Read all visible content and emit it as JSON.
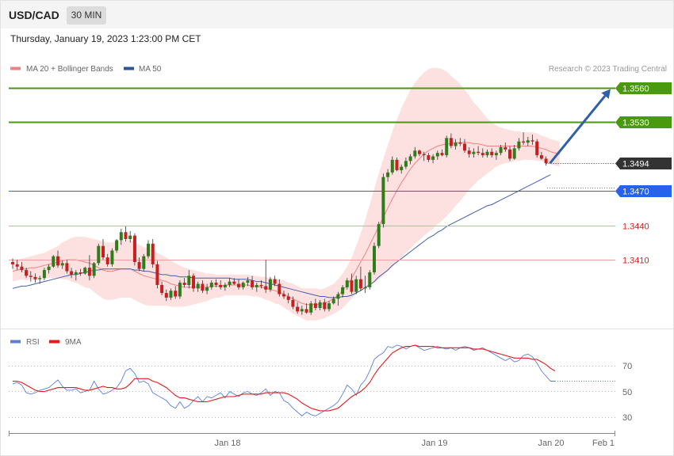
{
  "header": {
    "symbol": "USD/CAD",
    "timeframe": "30 MIN",
    "datetime": "Thursday, January 19, 2023 1:23:00 PM CET"
  },
  "legend": {
    "ma20_label": "MA 20 + Bollinger Bands",
    "ma50_label": "MA 50",
    "credit": "Research © 2023 Trading Central"
  },
  "colors": {
    "resistance": "#4a9a0e",
    "support_blue": "#2563eb",
    "current": "#333333",
    "pivot_red": "#d92020",
    "candle_up": "#2e7d1a",
    "candle_down": "#c81e1e",
    "bollinger_fill": "#fde0e0",
    "ma20": "#f08080",
    "ma50": "#4060b0",
    "arrow": "#2f5fa8",
    "rsi": "#5b7fd8",
    "rsi_ma": "#e21b1b"
  },
  "levels": [
    {
      "label": "1.3560",
      "value": 1.356,
      "kind": "resistance"
    },
    {
      "label": "1.3530",
      "value": 1.353,
      "kind": "resistance"
    },
    {
      "label": "1.3494",
      "value": 1.3494,
      "kind": "current"
    },
    {
      "label": "1.3470",
      "value": 1.347,
      "kind": "support"
    },
    {
      "label": "1.3440",
      "value": 1.344,
      "kind": "pivot"
    },
    {
      "label": "1.3410",
      "value": 1.341,
      "kind": "pivot"
    }
  ],
  "rsi_panel": {
    "rsi_label": "RSI",
    "ma_label": "9MA",
    "ticks": [
      "70",
      "50",
      "30"
    ]
  },
  "x_axis": {
    "labels": [
      "Jan 18",
      "Jan 19",
      "Jan 20",
      "Feb 1"
    ]
  },
  "chart_data": {
    "type": "candlestick",
    "ylim": [
      1.3348,
      1.357
    ],
    "forecast_target": 1.356,
    "candles": [
      [
        1.3408,
        1.3411,
        1.3402,
        1.3406
      ],
      [
        1.3406,
        1.341,
        1.3401,
        1.3404
      ],
      [
        1.3404,
        1.3408,
        1.3399,
        1.3401
      ],
      [
        1.3401,
        1.3403,
        1.3394,
        1.3396
      ],
      [
        1.3396,
        1.34,
        1.3391,
        1.3395
      ],
      [
        1.3395,
        1.3398,
        1.339,
        1.3393
      ],
      [
        1.3393,
        1.3396,
        1.3389,
        1.3394
      ],
      [
        1.3394,
        1.3403,
        1.3392,
        1.3401
      ],
      [
        1.3401,
        1.3406,
        1.3398,
        1.3404
      ],
      [
        1.3404,
        1.3414,
        1.3403,
        1.3413
      ],
      [
        1.3413,
        1.3418,
        1.3403,
        1.3405
      ],
      [
        1.3405,
        1.3409,
        1.3402,
        1.3407
      ],
      [
        1.3407,
        1.341,
        1.3398,
        1.34
      ],
      [
        1.34,
        1.3403,
        1.3394,
        1.3397
      ],
      [
        1.3397,
        1.3401,
        1.3392,
        1.3399
      ],
      [
        1.3399,
        1.3402,
        1.3396,
        1.3398
      ],
      [
        1.3398,
        1.3404,
        1.3397,
        1.3403
      ],
      [
        1.3403,
        1.3414,
        1.3392,
        1.3396
      ],
      [
        1.3396,
        1.3408,
        1.3394,
        1.3407
      ],
      [
        1.3407,
        1.3424,
        1.3405,
        1.3422
      ],
      [
        1.3422,
        1.3428,
        1.341,
        1.3412
      ],
      [
        1.3412,
        1.3415,
        1.3404,
        1.3406
      ],
      [
        1.3406,
        1.342,
        1.3404,
        1.3418
      ],
      [
        1.3418,
        1.3428,
        1.3416,
        1.3427
      ],
      [
        1.3427,
        1.3437,
        1.3423,
        1.3434
      ],
      [
        1.3434,
        1.3439,
        1.3426,
        1.3428
      ],
      [
        1.3428,
        1.3435,
        1.3425,
        1.3431
      ],
      [
        1.3431,
        1.3433,
        1.3405,
        1.3408
      ],
      [
        1.3408,
        1.3412,
        1.34,
        1.3402
      ],
      [
        1.3402,
        1.3415,
        1.34,
        1.3413
      ],
      [
        1.3413,
        1.3427,
        1.3411,
        1.3424
      ],
      [
        1.3424,
        1.3428,
        1.3403,
        1.3406
      ],
      [
        1.3406,
        1.3409,
        1.3385,
        1.3388
      ],
      [
        1.3388,
        1.3391,
        1.3379,
        1.3381
      ],
      [
        1.3381,
        1.3384,
        1.3374,
        1.3377
      ],
      [
        1.3377,
        1.3385,
        1.3375,
        1.3383
      ],
      [
        1.3383,
        1.3387,
        1.3376,
        1.3378
      ],
      [
        1.3378,
        1.3392,
        1.3376,
        1.339
      ],
      [
        1.339,
        1.3394,
        1.3386,
        1.3388
      ],
      [
        1.3388,
        1.3401,
        1.3385,
        1.3396
      ],
      [
        1.3396,
        1.3398,
        1.3382,
        1.3385
      ],
      [
        1.3385,
        1.3391,
        1.3382,
        1.3389
      ],
      [
        1.3389,
        1.3392,
        1.3381,
        1.3383
      ],
      [
        1.3383,
        1.3389,
        1.338,
        1.3386
      ],
      [
        1.3386,
        1.3392,
        1.3384,
        1.339
      ],
      [
        1.339,
        1.3393,
        1.3386,
        1.3388
      ],
      [
        1.3388,
        1.3392,
        1.3384,
        1.3386
      ],
      [
        1.3386,
        1.339,
        1.3383,
        1.3388
      ],
      [
        1.3388,
        1.3394,
        1.3386,
        1.3391
      ],
      [
        1.3391,
        1.3394,
        1.3388,
        1.3389
      ],
      [
        1.3389,
        1.3393,
        1.3384,
        1.3386
      ],
      [
        1.3386,
        1.3391,
        1.3384,
        1.339
      ],
      [
        1.339,
        1.3395,
        1.3387,
        1.3392
      ],
      [
        1.3392,
        1.3396,
        1.3384,
        1.3386
      ],
      [
        1.3386,
        1.339,
        1.3382,
        1.3388
      ],
      [
        1.3388,
        1.3392,
        1.3385,
        1.3387
      ],
      [
        1.3387,
        1.341,
        1.3381,
        1.3384
      ],
      [
        1.3384,
        1.3395,
        1.3382,
        1.3393
      ],
      [
        1.3393,
        1.3396,
        1.3387,
        1.3389
      ],
      [
        1.3389,
        1.3393,
        1.3378,
        1.338
      ],
      [
        1.338,
        1.3383,
        1.3376,
        1.3378
      ],
      [
        1.3378,
        1.3381,
        1.3372,
        1.3375
      ],
      [
        1.3375,
        1.3378,
        1.3367,
        1.3369
      ],
      [
        1.3369,
        1.3373,
        1.3363,
        1.3365
      ],
      [
        1.3365,
        1.337,
        1.3362,
        1.3367
      ],
      [
        1.3367,
        1.3372,
        1.3363,
        1.3364
      ],
      [
        1.3364,
        1.3374,
        1.3362,
        1.3372
      ],
      [
        1.3372,
        1.3376,
        1.3366,
        1.3368
      ],
      [
        1.3368,
        1.3375,
        1.3366,
        1.3373
      ],
      [
        1.3373,
        1.3376,
        1.3365,
        1.3367
      ],
      [
        1.3367,
        1.3374,
        1.3365,
        1.3372
      ],
      [
        1.3372,
        1.3378,
        1.3371,
        1.3376
      ],
      [
        1.3376,
        1.3382,
        1.337,
        1.338
      ],
      [
        1.338,
        1.3388,
        1.3377,
        1.3386
      ],
      [
        1.3386,
        1.3394,
        1.3384,
        1.3392
      ],
      [
        1.3392,
        1.3398,
        1.338,
        1.3382
      ],
      [
        1.3382,
        1.3396,
        1.338,
        1.3393
      ],
      [
        1.3393,
        1.3404,
        1.3383,
        1.3385
      ],
      [
        1.3385,
        1.3396,
        1.3381,
        1.3386
      ],
      [
        1.3386,
        1.3401,
        1.3384,
        1.3399
      ],
      [
        1.3399,
        1.3425,
        1.3397,
        1.3422
      ],
      [
        1.3422,
        1.3443,
        1.342,
        1.3441
      ],
      [
        1.3441,
        1.3485,
        1.3438,
        1.3482
      ],
      [
        1.3482,
        1.3489,
        1.3478,
        1.3486
      ],
      [
        1.3486,
        1.35,
        1.3484,
        1.3497
      ],
      [
        1.3497,
        1.3499,
        1.3487,
        1.3488
      ],
      [
        1.3488,
        1.3493,
        1.3485,
        1.3491
      ],
      [
        1.3491,
        1.3499,
        1.3489,
        1.3496
      ],
      [
        1.3496,
        1.3502,
        1.3493,
        1.35
      ],
      [
        1.35,
        1.3508,
        1.3498,
        1.3505
      ],
      [
        1.3505,
        1.3506,
        1.35,
        1.3502
      ],
      [
        1.3502,
        1.3504,
        1.3496,
        1.3501
      ],
      [
        1.3501,
        1.3503,
        1.3495,
        1.3497
      ],
      [
        1.3497,
        1.3502,
        1.3494,
        1.35
      ],
      [
        1.35,
        1.3505,
        1.3497,
        1.3503
      ],
      [
        1.3503,
        1.3506,
        1.35,
        1.3501
      ],
      [
        1.3501,
        1.3518,
        1.3499,
        1.3516
      ],
      [
        1.3516,
        1.352,
        1.3507,
        1.3509
      ],
      [
        1.3509,
        1.3515,
        1.3506,
        1.3512
      ],
      [
        1.3512,
        1.3516,
        1.3509,
        1.3511
      ],
      [
        1.3511,
        1.3515,
        1.3503,
        1.3505
      ],
      [
        1.3505,
        1.3508,
        1.3499,
        1.3502
      ],
      [
        1.3502,
        1.3507,
        1.3499,
        1.3504
      ],
      [
        1.3504,
        1.3509,
        1.3501,
        1.3503
      ],
      [
        1.3503,
        1.3507,
        1.3499,
        1.3501
      ],
      [
        1.3501,
        1.3506,
        1.3499,
        1.3504
      ],
      [
        1.3504,
        1.3507,
        1.3499,
        1.3501
      ],
      [
        1.3501,
        1.3505,
        1.3497,
        1.3503
      ],
      [
        1.3503,
        1.351,
        1.3501,
        1.3508
      ],
      [
        1.3508,
        1.3512,
        1.3504,
        1.3506
      ],
      [
        1.3506,
        1.3509,
        1.3496,
        1.3498
      ],
      [
        1.3498,
        1.351,
        1.3497,
        1.3507
      ],
      [
        1.3507,
        1.3516,
        1.3505,
        1.3513
      ],
      [
        1.3513,
        1.3521,
        1.351,
        1.3512
      ],
      [
        1.3512,
        1.3517,
        1.3509,
        1.3514
      ],
      [
        1.3514,
        1.3519,
        1.351,
        1.3513
      ],
      [
        1.3513,
        1.3515,
        1.3499,
        1.3501
      ],
      [
        1.3501,
        1.3504,
        1.3497,
        1.3498
      ],
      [
        1.3498,
        1.35,
        1.3492,
        1.3494
      ]
    ],
    "ma20": [
      1.34,
      1.3401,
      1.3402,
      1.3402,
      1.3403,
      1.3403,
      1.3404,
      1.3405,
      1.3406,
      1.3407,
      1.3408,
      1.3409,
      1.341,
      1.341,
      1.341,
      1.3409,
      1.3408,
      1.3407,
      1.3405,
      1.3403,
      1.3401,
      1.34,
      1.34,
      1.3401,
      1.3402,
      1.3402,
      1.3402,
      1.34,
      1.3398,
      1.3396,
      1.3395,
      1.3394,
      1.3393,
      1.3392,
      1.3391,
      1.3389,
      1.3388,
      1.3387,
      1.3386,
      1.3386,
      1.3386,
      1.3386,
      1.3386,
      1.3386,
      1.3387,
      1.3387,
      1.3387,
      1.3388,
      1.3388,
      1.3388,
      1.3388,
      1.3388,
      1.3388,
      1.3387,
      1.3387,
      1.3386,
      1.3385,
      1.3384,
      1.3383,
      1.3382,
      1.338,
      1.3378,
      1.3376,
      1.3374,
      1.3372,
      1.3371,
      1.3371,
      1.3371,
      1.3371,
      1.3372,
      1.3374,
      1.3376,
      1.3379,
      1.3383,
      1.3388,
      1.3394,
      1.3401,
      1.3408,
      1.3415,
      1.3423,
      1.3431,
      1.3439,
      1.3447,
      1.3455,
      1.3463,
      1.347,
      1.3477,
      1.3483,
      1.3489,
      1.3494,
      1.3498,
      1.3502,
      1.3505,
      1.3507,
      1.3509,
      1.351,
      1.3511,
      1.3511,
      1.3512,
      1.3512,
      1.3512,
      1.3512,
      1.3511,
      1.3511,
      1.351,
      1.3509,
      1.3509,
      1.3509,
      1.3509,
      1.3509,
      1.3509,
      1.3509,
      1.3509,
      1.3509,
      1.3509,
      1.3509,
      1.3508,
      1.3507,
      1.3506,
      1.3504,
      1.3503,
      1.3502
    ],
    "bb_width": [
      0.0009,
      0.0009,
      0.0009,
      0.001,
      0.001,
      0.0011,
      0.0011,
      0.0011,
      0.0012,
      0.0013,
      0.0014,
      0.0016,
      0.0017,
      0.0019,
      0.002,
      0.0021,
      0.0022,
      0.0022,
      0.0023,
      0.0024,
      0.0025,
      0.0025,
      0.0025,
      0.0025,
      0.0025,
      0.0025,
      0.0025,
      0.0025,
      0.0025,
      0.0025,
      0.0025,
      0.0024,
      0.0023,
      0.0022,
      0.0021,
      0.002,
      0.0019,
      0.0018,
      0.0017,
      0.0016,
      0.0015,
      0.0014,
      0.0013,
      0.0012,
      0.0011,
      0.001,
      0.001,
      0.0009,
      0.0009,
      0.0009,
      0.0009,
      0.0009,
      0.0009,
      0.0009,
      0.0009,
      0.0009,
      0.001,
      0.001,
      0.0011,
      0.0011,
      0.0012,
      0.0012,
      0.0013,
      0.0013,
      0.0013,
      0.0014,
      0.0014,
      0.0014,
      0.0013,
      0.0013,
      0.0013,
      0.0013,
      0.0014,
      0.0015,
      0.0016,
      0.0018,
      0.0021,
      0.0025,
      0.003,
      0.0035,
      0.0041,
      0.0046,
      0.0051,
      0.0055,
      0.0059,
      0.0062,
      0.0065,
      0.0067,
      0.0069,
      0.007,
      0.0071,
      0.0071,
      0.0071,
      0.007,
      0.0068,
      0.0066,
      0.0063,
      0.0059,
      0.0055,
      0.0051,
      0.0046,
      0.0041,
      0.0036,
      0.0032,
      0.0028,
      0.0024,
      0.0021,
      0.0018,
      0.0016,
      0.0015,
      0.0014,
      0.0013,
      0.0013,
      0.0012,
      0.0012,
      0.0012,
      0.0012,
      0.0011,
      0.0011,
      0.0011,
      0.0011,
      0.0011
    ],
    "ma50": [
      1.3385,
      1.3386,
      1.3387,
      1.3387,
      1.3388,
      1.3389,
      1.339,
      1.3391,
      1.3392,
      1.3393,
      1.3394,
      1.3395,
      1.3396,
      1.3397,
      1.3397,
      1.3398,
      1.3399,
      1.34,
      1.3401,
      1.3401,
      1.3402,
      1.3402,
      1.3402,
      1.3402,
      1.3402,
      1.3402,
      1.3402,
      1.3401,
      1.3401,
      1.34,
      1.34,
      1.3399,
      1.3398,
      1.3397,
      1.3397,
      1.3396,
      1.3396,
      1.3395,
      1.3395,
      1.3395,
      1.3394,
      1.3394,
      1.3394,
      1.3394,
      1.3394,
      1.3394,
      1.3394,
      1.3394,
      1.3394,
      1.3393,
      1.3393,
      1.3393,
      1.3393,
      1.3392,
      1.3391,
      1.3391,
      1.339,
      1.3389,
      1.3388,
      1.3387,
      1.3386,
      1.3385,
      1.3384,
      1.3383,
      1.3382,
      1.3381,
      1.338,
      1.3379,
      1.3378,
      1.3378,
      1.3377,
      1.3377,
      1.3377,
      1.3378,
      1.3378,
      1.3379,
      1.3381,
      1.3383,
      1.3386,
      1.3388,
      1.3391,
      1.3395,
      1.3398,
      1.3401,
      1.3405,
      1.3408,
      1.3411,
      1.3414,
      1.3417,
      1.342,
      1.3423,
      1.3426,
      1.3429,
      1.3431,
      1.3434,
      1.3436,
      1.3439,
      1.3441,
      1.3443,
      1.3445,
      1.3447,
      1.3449,
      1.3451,
      1.3453,
      1.3455,
      1.3457,
      1.3458,
      1.346,
      1.3462,
      1.3464,
      1.3466,
      1.3468,
      1.347,
      1.3472,
      1.3474,
      1.3476,
      1.3478,
      1.348,
      1.3482,
      1.3484
    ],
    "rsi": [
      56,
      57,
      55,
      49,
      48,
      49,
      51,
      52,
      53,
      56,
      59,
      54,
      51,
      51,
      52,
      49,
      50,
      51,
      58,
      52,
      48,
      49,
      51,
      53,
      58,
      66,
      68,
      64,
      57,
      58,
      56,
      49,
      47,
      45,
      43,
      39,
      37,
      42,
      37,
      39,
      43,
      46,
      42,
      46,
      45,
      47,
      49,
      45,
      50,
      48,
      46,
      49,
      50,
      48,
      47,
      49,
      52,
      47,
      50,
      49,
      43,
      41,
      37,
      34,
      31,
      34,
      32,
      31,
      33,
      35,
      37,
      39,
      42,
      48,
      55,
      52,
      47,
      55,
      59,
      66,
      75,
      78,
      80,
      85,
      84,
      86,
      85,
      83,
      85,
      86,
      84,
      82,
      83,
      84,
      85,
      84,
      83,
      84,
      82,
      84,
      85,
      84,
      82,
      83,
      84,
      82,
      80,
      78,
      76,
      74,
      76,
      73,
      74,
      78,
      79,
      77,
      72,
      66,
      62,
      58,
      58
    ],
    "rsi_ma": [
      58,
      58,
      57,
      55,
      53,
      51,
      50,
      50,
      51,
      52,
      53,
      53,
      53,
      53,
      53,
      52,
      51,
      51,
      52,
      53,
      54,
      53,
      53,
      52,
      52,
      53,
      56,
      60,
      60,
      60,
      60,
      58,
      57,
      55,
      53,
      50,
      47,
      45,
      45,
      44,
      43,
      42,
      42,
      42,
      43,
      44,
      45,
      46,
      46,
      46,
      47,
      48,
      48,
      48,
      48,
      48,
      49,
      49,
      49,
      49,
      49,
      48,
      46,
      44,
      41,
      39,
      37,
      36,
      35,
      35,
      35,
      36,
      37,
      40,
      43,
      46,
      48,
      50,
      53,
      57,
      63,
      68,
      72,
      76,
      80,
      82,
      84,
      85,
      85,
      86,
      85,
      85,
      85,
      85,
      84,
      84,
      84,
      84,
      84,
      84,
      84,
      84,
      83,
      83,
      83,
      82,
      81,
      80,
      79,
      78,
      77,
      76,
      76,
      76,
      76,
      75,
      75,
      73,
      71,
      68,
      66
    ]
  }
}
